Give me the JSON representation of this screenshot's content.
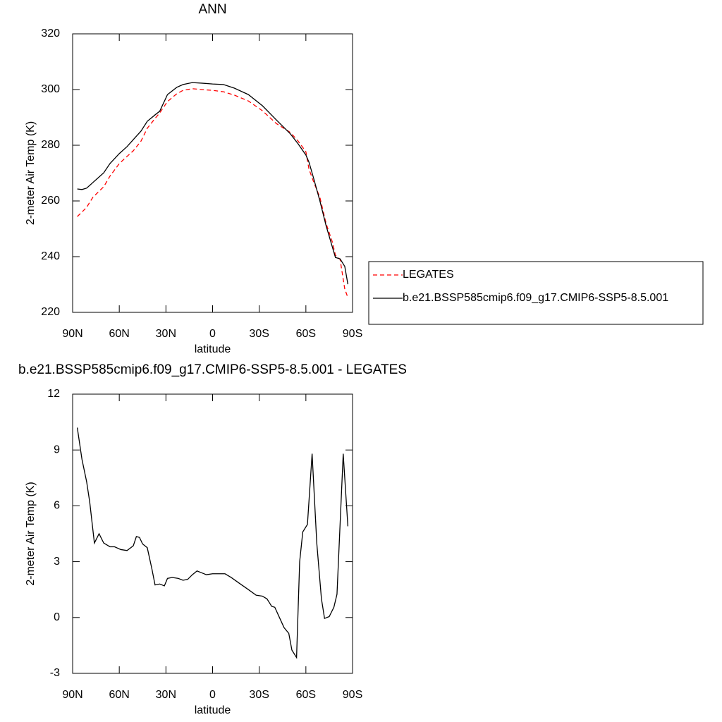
{
  "chart_data": [
    {
      "type": "line",
      "title": "ANN",
      "xlabel": "latitude",
      "ylabel": "2-meter Air Temp (K)",
      "x": [
        87,
        84,
        81,
        77,
        70,
        66,
        60,
        55,
        51,
        46,
        42,
        37,
        34,
        29,
        23,
        19,
        13,
        7,
        0,
        -7,
        -14,
        -23,
        -32,
        -41,
        -50,
        -55,
        -60,
        -62,
        -65,
        -69,
        -73,
        -77,
        -79,
        -82,
        -85,
        -87
      ],
      "xlim": [
        90,
        -90
      ],
      "xticks": [
        {
          "value": 90,
          "label": "90N"
        },
        {
          "value": 60,
          "label": "60N"
        },
        {
          "value": 30,
          "label": "30N"
        },
        0,
        {
          "value": -30,
          "label": "30S"
        },
        {
          "value": -60,
          "label": "60S"
        },
        {
          "value": -90,
          "label": "90S"
        }
      ],
      "ylim": [
        220,
        320
      ],
      "yticks": [
        220,
        240,
        260,
        280,
        300,
        320
      ],
      "legend": "outside right",
      "series": [
        {
          "name": "LEGATES",
          "color": "#ff0000",
          "linestyle": "dashed",
          "values": [
            254.4,
            256.0,
            257.7,
            261.3,
            265.1,
            268.9,
            273.4,
            276.0,
            278.0,
            281.5,
            286.1,
            289.6,
            291.6,
            295.7,
            298.5,
            299.7,
            300.3,
            300.0,
            299.7,
            299.2,
            298.0,
            295.9,
            292.4,
            287.8,
            284.6,
            281.5,
            277.7,
            271.4,
            266.8,
            261.3,
            251.9,
            245.3,
            240.5,
            239.0,
            228.4,
            225.3
          ]
        },
        {
          "name": "b.e21.BSSP585cmip6.f09_g17.CMIP6-SSP5-8.5.001",
          "color": "#000000",
          "linestyle": "solid",
          "values": [
            264.3,
            264.1,
            264.6,
            266.6,
            270.1,
            273.4,
            277.0,
            279.5,
            282.0,
            285.1,
            288.6,
            290.9,
            292.2,
            298.2,
            300.8,
            301.8,
            302.5,
            302.3,
            302.0,
            301.8,
            300.5,
            298.2,
            294.2,
            289.1,
            284.1,
            280.5,
            276.5,
            273.9,
            268.1,
            260.0,
            251.1,
            243.5,
            239.7,
            239.2,
            236.5,
            230.1
          ]
        }
      ]
    },
    {
      "type": "line",
      "title": "b.e21.BSSP585cmip6.f09_g17.CMIP6-SSP5-8.5.001 - LEGATES",
      "xlabel": "latitude",
      "ylabel": "2-meter Air Temp (K)",
      "x": [
        87,
        84,
        81,
        79,
        76,
        73,
        70,
        66,
        63,
        59,
        55,
        51,
        49,
        47,
        45,
        42,
        39,
        37,
        34,
        31,
        29,
        26,
        22,
        19,
        16,
        13,
        10,
        7,
        4,
        0,
        -3,
        -8,
        -12,
        -17,
        -23,
        -28,
        -32,
        -35,
        -38,
        -40,
        -43,
        -46,
        -49,
        -51,
        -54,
        -56,
        -58,
        -61,
        -64,
        -67,
        -70,
        -72,
        -75,
        -78,
        -80,
        -84,
        -87
      ],
      "xlim": [
        90,
        -90
      ],
      "xticks": [
        {
          "value": 90,
          "label": "90N"
        },
        {
          "value": 60,
          "label": "60N"
        },
        {
          "value": 30,
          "label": "30N"
        },
        0,
        {
          "value": -30,
          "label": "30S"
        },
        {
          "value": -60,
          "label": "60S"
        },
        {
          "value": -90,
          "label": "90S"
        }
      ],
      "ylim": [
        -3,
        12
      ],
      "yticks": [
        -3,
        0,
        3,
        6,
        9,
        12
      ],
      "color": "#000000",
      "values": [
        10.2,
        8.5,
        7.3,
        6.2,
        4.0,
        4.5,
        4.0,
        3.8,
        3.8,
        3.65,
        3.6,
        3.85,
        4.35,
        4.3,
        3.95,
        3.75,
        2.6,
        1.75,
        1.8,
        1.7,
        2.1,
        2.15,
        2.1,
        2.0,
        2.05,
        2.3,
        2.5,
        2.4,
        2.3,
        2.35,
        2.35,
        2.35,
        2.15,
        1.85,
        1.5,
        1.2,
        1.15,
        1.0,
        0.6,
        0.55,
        0.0,
        -0.55,
        -0.85,
        -1.75,
        -2.15,
        3.0,
        4.6,
        5.0,
        8.8,
        4.0,
        1.0,
        -0.05,
        0.05,
        0.55,
        1.25,
        8.8,
        4.9
      ]
    }
  ]
}
